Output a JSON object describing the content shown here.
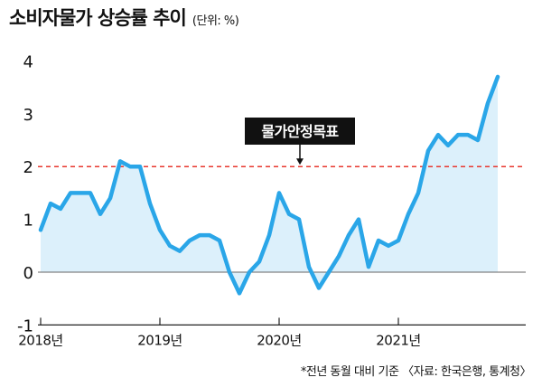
{
  "header": {
    "title": "소비자물가 상승률 추이",
    "unit": "(단위: %)"
  },
  "footnote": "*전년 동월 대비 기준 〈자료: 한국은행, 통계청〉",
  "colors": {
    "line": "#2aa6e8",
    "area": "#dcf0fb",
    "target_line": "#e8382f",
    "label_box": "#111111"
  },
  "chart_data": {
    "type": "area",
    "title": "소비자물가 상승률 추이",
    "ylabel": "(단위: %)",
    "xlabel": "",
    "ylim": [
      -1,
      4
    ],
    "y_ticks": [
      "-1",
      "0",
      "1",
      "2",
      "3",
      "4"
    ],
    "x_ticks": [
      "2018년",
      "2019년",
      "2020년",
      "2021년"
    ],
    "x": [
      "2018-01",
      "2018-02",
      "2018-03",
      "2018-04",
      "2018-05",
      "2018-06",
      "2018-07",
      "2018-08",
      "2018-09",
      "2018-10",
      "2018-11",
      "2018-12",
      "2019-01",
      "2019-02",
      "2019-03",
      "2019-04",
      "2019-05",
      "2019-06",
      "2019-07",
      "2019-08",
      "2019-09",
      "2019-10",
      "2019-11",
      "2019-12",
      "2020-01",
      "2020-02",
      "2020-03",
      "2020-04",
      "2020-05",
      "2020-06",
      "2020-07",
      "2020-08",
      "2020-09",
      "2020-10",
      "2020-11",
      "2020-12",
      "2021-01",
      "2021-02",
      "2021-03",
      "2021-04",
      "2021-05",
      "2021-06",
      "2021-07",
      "2021-08",
      "2021-09",
      "2021-10",
      "2021-11"
    ],
    "values": [
      0.8,
      1.3,
      1.2,
      1.5,
      1.5,
      1.5,
      1.1,
      1.4,
      2.1,
      2.0,
      2.0,
      1.3,
      0.8,
      0.5,
      0.4,
      0.6,
      0.7,
      0.7,
      0.6,
      0.0,
      -0.4,
      0.0,
      0.2,
      0.7,
      1.5,
      1.1,
      1.0,
      0.1,
      -0.3,
      0.0,
      0.3,
      0.7,
      1.0,
      0.1,
      0.6,
      0.5,
      0.6,
      1.1,
      1.5,
      2.3,
      2.6,
      2.4,
      2.6,
      2.6,
      2.5,
      3.2,
      3.7
    ],
    "reference_line": {
      "value": 2,
      "label": "물가안정목표"
    },
    "grid": false
  }
}
